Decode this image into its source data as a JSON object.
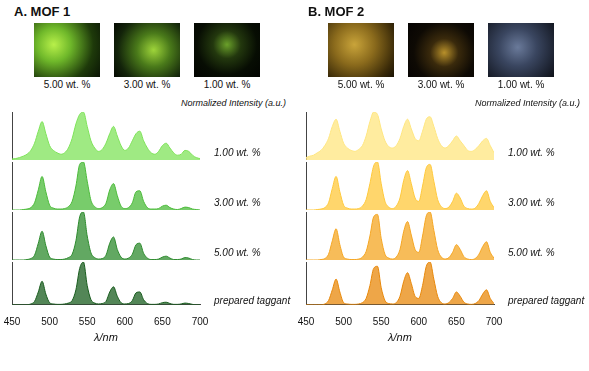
{
  "chart_data": [
    {
      "type": "line",
      "title": "A. MOF 1",
      "image_labels": [
        "5.00 wt. %",
        "3.00 wt. %",
        "1.00 wt. %"
      ],
      "x_label": "λ/nm",
      "y_label": "Normalized Intensity (a.u.)",
      "x": [
        450,
        455,
        460,
        465,
        470,
        475,
        480,
        485,
        490,
        495,
        500,
        505,
        510,
        515,
        520,
        525,
        530,
        535,
        540,
        545,
        550,
        555,
        560,
        565,
        570,
        575,
        580,
        585,
        590,
        595,
        600,
        605,
        610,
        615,
        620,
        625,
        630,
        635,
        640,
        645,
        650,
        655,
        660,
        665,
        670,
        675,
        680,
        685,
        690,
        695,
        700
      ],
      "xlim": [
        450,
        700
      ],
      "xticks": [
        450,
        500,
        550,
        600,
        650,
        700
      ],
      "ylim": [
        0,
        1
      ],
      "grid": false,
      "tick_labels": "x",
      "series": [
        {
          "name": "1.00 wt. %",
          "color": "#7fe35a",
          "values": [
            0.02,
            0.03,
            0.05,
            0.08,
            0.12,
            0.2,
            0.35,
            0.6,
            0.8,
            0.55,
            0.3,
            0.2,
            0.15,
            0.12,
            0.15,
            0.25,
            0.45,
            0.75,
            0.95,
            1.0,
            0.7,
            0.4,
            0.25,
            0.18,
            0.22,
            0.35,
            0.55,
            0.7,
            0.5,
            0.3,
            0.2,
            0.25,
            0.4,
            0.55,
            0.6,
            0.4,
            0.25,
            0.15,
            0.12,
            0.18,
            0.3,
            0.35,
            0.25,
            0.15,
            0.1,
            0.12,
            0.2,
            0.18,
            0.1,
            0.05,
            0.03
          ]
        },
        {
          "name": "3.00 wt. %",
          "color": "#4cbb3a",
          "values": [
            0,
            0,
            0,
            0.01,
            0.02,
            0.05,
            0.15,
            0.42,
            0.7,
            0.38,
            0.1,
            0.04,
            0.02,
            0.02,
            0.03,
            0.07,
            0.18,
            0.5,
            0.95,
            1.0,
            0.6,
            0.2,
            0.07,
            0.03,
            0.05,
            0.14,
            0.42,
            0.55,
            0.3,
            0.08,
            0.03,
            0.05,
            0.15,
            0.38,
            0.4,
            0.18,
            0.05,
            0.02,
            0.02,
            0.03,
            0.08,
            0.1,
            0.05,
            0.02,
            0.01,
            0.03,
            0.06,
            0.05,
            0.02,
            0.01,
            0
          ]
        },
        {
          "name": "5.00 wt. %",
          "color": "#2e8b2e",
          "values": [
            0,
            0,
            0,
            0,
            0.01,
            0.03,
            0.1,
            0.35,
            0.6,
            0.3,
            0.06,
            0.02,
            0.01,
            0.01,
            0.02,
            0.05,
            0.12,
            0.4,
            0.9,
            1.0,
            0.5,
            0.15,
            0.05,
            0.02,
            0.03,
            0.1,
            0.35,
            0.48,
            0.22,
            0.06,
            0.02,
            0.04,
            0.12,
            0.32,
            0.35,
            0.14,
            0.04,
            0.01,
            0.01,
            0.02,
            0.06,
            0.08,
            0.04,
            0.01,
            0.01,
            0.02,
            0.05,
            0.04,
            0.01,
            0,
            0
          ]
        },
        {
          "name": "prepared taggant",
          "color": "#1b5e20",
          "values": [
            0,
            0,
            0,
            0,
            0,
            0.02,
            0.08,
            0.3,
            0.55,
            0.25,
            0.05,
            0.02,
            0.01,
            0.01,
            0.02,
            0.04,
            0.1,
            0.35,
            0.85,
            1.0,
            0.45,
            0.12,
            0.04,
            0.02,
            0.03,
            0.08,
            0.3,
            0.42,
            0.2,
            0.05,
            0.02,
            0.03,
            0.1,
            0.28,
            0.3,
            0.12,
            0.03,
            0.01,
            0.01,
            0.02,
            0.05,
            0.06,
            0.03,
            0.01,
            0.01,
            0.02,
            0.04,
            0.03,
            0.01,
            0,
            0
          ]
        }
      ]
    },
    {
      "type": "line",
      "title": "B. MOF 2",
      "image_labels": [
        "5.00 wt. %",
        "3.00 wt. %",
        "1.00 wt. %"
      ],
      "x_label": "λ/nm",
      "y_label": "Normalized Intensity (a.u.)",
      "x": [
        450,
        455,
        460,
        465,
        470,
        475,
        480,
        485,
        490,
        495,
        500,
        505,
        510,
        515,
        520,
        525,
        530,
        535,
        540,
        545,
        550,
        555,
        560,
        565,
        570,
        575,
        580,
        585,
        590,
        595,
        600,
        605,
        610,
        615,
        620,
        625,
        630,
        635,
        640,
        645,
        650,
        655,
        660,
        665,
        670,
        675,
        680,
        685,
        690,
        695,
        700
      ],
      "xlim": [
        450,
        700
      ],
      "xticks": [
        450,
        500,
        550,
        600,
        650,
        700
      ],
      "ylim": [
        0,
        1
      ],
      "grid": false,
      "tick_labels": "x",
      "series": [
        {
          "name": "1.00 wt. %",
          "color": "#ffe680",
          "values": [
            0.05,
            0.08,
            0.1,
            0.15,
            0.2,
            0.3,
            0.45,
            0.7,
            0.85,
            0.6,
            0.35,
            0.25,
            0.2,
            0.18,
            0.22,
            0.3,
            0.5,
            0.8,
            1.0,
            0.95,
            0.65,
            0.4,
            0.28,
            0.25,
            0.3,
            0.45,
            0.7,
            0.85,
            0.65,
            0.45,
            0.4,
            0.6,
            0.85,
            0.9,
            0.7,
            0.45,
            0.3,
            0.25,
            0.3,
            0.4,
            0.5,
            0.4,
            0.3,
            0.2,
            0.18,
            0.22,
            0.3,
            0.4,
            0.45,
            0.3,
            0.15
          ]
        },
        {
          "name": "3.00 wt. %",
          "color": "#ffc93c",
          "values": [
            0,
            0,
            0,
            0.01,
            0.02,
            0.05,
            0.15,
            0.45,
            0.7,
            0.38,
            0.1,
            0.04,
            0.02,
            0.02,
            0.03,
            0.08,
            0.22,
            0.55,
            0.92,
            1.0,
            0.55,
            0.18,
            0.06,
            0.03,
            0.08,
            0.25,
            0.62,
            0.82,
            0.55,
            0.25,
            0.18,
            0.5,
            0.88,
            0.95,
            0.6,
            0.22,
            0.07,
            0.03,
            0.06,
            0.18,
            0.35,
            0.25,
            0.08,
            0.03,
            0.02,
            0.04,
            0.14,
            0.3,
            0.4,
            0.18,
            0.05
          ]
        },
        {
          "name": "5.00 wt. %",
          "color": "#f5a623",
          "values": [
            0,
            0,
            0,
            0,
            0.01,
            0.03,
            0.12,
            0.4,
            0.65,
            0.32,
            0.06,
            0.02,
            0.01,
            0.01,
            0.02,
            0.06,
            0.18,
            0.5,
            0.9,
            0.95,
            0.45,
            0.12,
            0.04,
            0.02,
            0.06,
            0.22,
            0.6,
            0.8,
            0.52,
            0.22,
            0.16,
            0.5,
            0.92,
            1.0,
            0.62,
            0.22,
            0.06,
            0.02,
            0.05,
            0.16,
            0.32,
            0.22,
            0.07,
            0.02,
            0.01,
            0.03,
            0.12,
            0.28,
            0.38,
            0.16,
            0.04
          ]
        },
        {
          "name": "prepared taggant",
          "color": "#e8890c",
          "values": [
            0,
            0,
            0,
            0,
            0,
            0.02,
            0.1,
            0.35,
            0.6,
            0.3,
            0.05,
            0.02,
            0.01,
            0.01,
            0.02,
            0.05,
            0.15,
            0.45,
            0.85,
            0.9,
            0.4,
            0.1,
            0.03,
            0.02,
            0.05,
            0.2,
            0.55,
            0.75,
            0.5,
            0.2,
            0.15,
            0.45,
            0.9,
            1.0,
            0.6,
            0.2,
            0.05,
            0.02,
            0.05,
            0.15,
            0.3,
            0.2,
            0.06,
            0.02,
            0.01,
            0.03,
            0.1,
            0.25,
            0.35,
            0.15,
            0.03
          ]
        }
      ]
    }
  ]
}
